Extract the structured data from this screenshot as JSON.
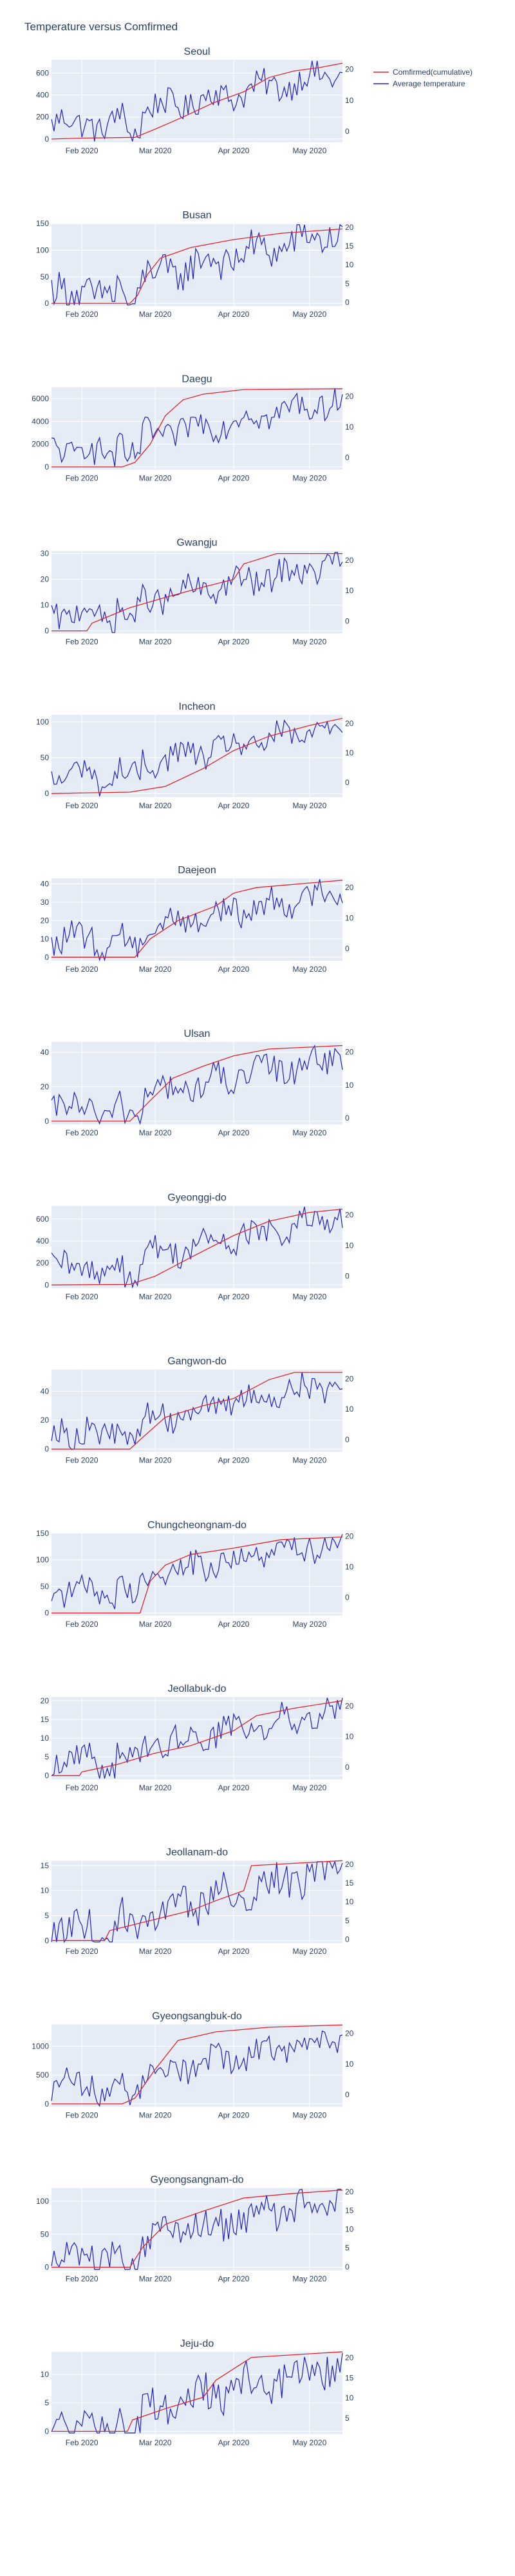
{
  "title": "Temperature versus Comfirmed",
  "legend": {
    "position": "top-right",
    "items": [
      {
        "name": "Comfirmed(cumulative)",
        "color": "#e0242a"
      },
      {
        "name": "Average temperature",
        "color": "#1f1fbf"
      }
    ]
  },
  "colors": {
    "plot_bg": "#e5ecf6",
    "grid": "#ffffff",
    "text": "#2a3f5f"
  },
  "chart_data": [
    {
      "type": "line",
      "title": "Seoul",
      "x_range": [
        "2020-01-20",
        "2020-05-14"
      ],
      "x_ticks": [
        "Feb 2020",
        "Mar 2020",
        "Apr 2020",
        "May 2020"
      ],
      "y_left": {
        "range": [
          -30,
          720
        ],
        "ticks": [
          0,
          200,
          400,
          600
        ]
      },
      "y_right": {
        "range": [
          -3.5,
          23
        ],
        "ticks": [
          0,
          10,
          20
        ]
      },
      "confirmed": {
        "start": 0,
        "end": 690,
        "points": [
          [
            "2020-01-20",
            0
          ],
          [
            "2020-02-01",
            8
          ],
          [
            "2020-02-22",
            15
          ],
          [
            "2020-03-01",
            90
          ],
          [
            "2020-03-12",
            200
          ],
          [
            "2020-03-24",
            330
          ],
          [
            "2020-04-05",
            430
          ],
          [
            "2020-04-15",
            560
          ],
          [
            "2020-04-25",
            620
          ],
          [
            "2020-05-05",
            650
          ],
          [
            "2020-05-14",
            690
          ]
        ]
      }
    },
    {
      "type": "line",
      "title": "Busan",
      "x_range": [
        "2020-01-20",
        "2020-05-14"
      ],
      "x_ticks": [
        "Feb 2020",
        "Mar 2020",
        "Apr 2020",
        "May 2020"
      ],
      "y_left": {
        "range": [
          -5,
          150
        ],
        "ticks": [
          0,
          50,
          100,
          150
        ]
      },
      "y_right": {
        "range": [
          -1,
          21
        ],
        "ticks": [
          0,
          5,
          10,
          15,
          20
        ]
      },
      "confirmed": {
        "start": 0,
        "end": 140,
        "points": [
          [
            "2020-01-20",
            0
          ],
          [
            "2020-02-20",
            0
          ],
          [
            "2020-02-23",
            15
          ],
          [
            "2020-02-27",
            55
          ],
          [
            "2020-03-03",
            85
          ],
          [
            "2020-03-15",
            105
          ],
          [
            "2020-04-01",
            120
          ],
          [
            "2020-04-20",
            132
          ],
          [
            "2020-05-14",
            140
          ]
        ]
      }
    },
    {
      "type": "line",
      "title": "Daegu",
      "x_range": [
        "2020-01-20",
        "2020-05-14"
      ],
      "x_ticks": [
        "Feb 2020",
        "Mar 2020",
        "Apr 2020",
        "May 2020"
      ],
      "y_left": {
        "range": [
          -250,
          7000
        ],
        "ticks": [
          0,
          2000,
          4000,
          6000
        ]
      },
      "y_right": {
        "range": [
          -4,
          23
        ],
        "ticks": [
          0,
          10,
          20
        ]
      },
      "confirmed": {
        "start": 0,
        "end": 6870,
        "points": [
          [
            "2020-01-20",
            0
          ],
          [
            "2020-02-17",
            0
          ],
          [
            "2020-02-22",
            400
          ],
          [
            "2020-02-28",
            2000
          ],
          [
            "2020-03-05",
            4500
          ],
          [
            "2020-03-12",
            5900
          ],
          [
            "2020-03-20",
            6400
          ],
          [
            "2020-04-05",
            6800
          ],
          [
            "2020-05-14",
            6870
          ]
        ]
      }
    },
    {
      "type": "line",
      "title": "Gwangju",
      "x_range": [
        "2020-01-20",
        "2020-05-14"
      ],
      "x_ticks": [
        "Feb 2020",
        "Mar 2020",
        "Apr 2020",
        "May 2020"
      ],
      "y_left": {
        "range": [
          -1,
          31
        ],
        "ticks": [
          0,
          10,
          20,
          30
        ]
      },
      "y_right": {
        "range": [
          -4,
          23
        ],
        "ticks": [
          0,
          10,
          20
        ]
      },
      "confirmed": {
        "start": 0,
        "end": 30,
        "points": [
          [
            "2020-01-20",
            0
          ],
          [
            "2020-02-03",
            0
          ],
          [
            "2020-02-05",
            3
          ],
          [
            "2020-02-20",
            9
          ],
          [
            "2020-03-05",
            13
          ],
          [
            "2020-03-20",
            17
          ],
          [
            "2020-04-01",
            20
          ],
          [
            "2020-04-05",
            26
          ],
          [
            "2020-04-18",
            30
          ],
          [
            "2020-05-14",
            30
          ]
        ]
      }
    },
    {
      "type": "line",
      "title": "Incheon",
      "x_range": [
        "2020-01-20",
        "2020-05-14"
      ],
      "x_ticks": [
        "Feb 2020",
        "Mar 2020",
        "Apr 2020",
        "May 2020"
      ],
      "y_left": {
        "range": [
          -5,
          110
        ],
        "ticks": [
          0,
          50,
          100
        ]
      },
      "y_right": {
        "range": [
          -5,
          23
        ],
        "ticks": [
          0,
          10,
          20
        ]
      },
      "confirmed": {
        "start": 0,
        "end": 105,
        "points": [
          [
            "2020-01-20",
            0
          ],
          [
            "2020-02-20",
            2
          ],
          [
            "2020-03-05",
            10
          ],
          [
            "2020-03-20",
            35
          ],
          [
            "2020-04-01",
            60
          ],
          [
            "2020-04-15",
            80
          ],
          [
            "2020-05-01",
            95
          ],
          [
            "2020-05-14",
            105
          ]
        ]
      }
    },
    {
      "type": "line",
      "title": "Daejeon",
      "x_range": [
        "2020-01-20",
        "2020-05-14"
      ],
      "x_ticks": [
        "Feb 2020",
        "Mar 2020",
        "Apr 2020",
        "May 2020"
      ],
      "y_left": {
        "range": [
          -2,
          43
        ],
        "ticks": [
          0,
          10,
          20,
          30,
          40
        ]
      },
      "y_right": {
        "range": [
          -4,
          23
        ],
        "ticks": [
          0,
          10,
          20
        ]
      },
      "confirmed": {
        "start": 0,
        "end": 42,
        "points": [
          [
            "2020-01-20",
            0
          ],
          [
            "2020-02-22",
            0
          ],
          [
            "2020-02-28",
            10
          ],
          [
            "2020-03-10",
            20
          ],
          [
            "2020-03-25",
            28
          ],
          [
            "2020-04-01",
            35
          ],
          [
            "2020-04-10",
            38
          ],
          [
            "2020-05-14",
            42
          ]
        ]
      }
    },
    {
      "type": "line",
      "title": "Ulsan",
      "x_range": [
        "2020-01-20",
        "2020-05-14"
      ],
      "x_ticks": [
        "Feb 2020",
        "Mar 2020",
        "Apr 2020",
        "May 2020"
      ],
      "y_left": {
        "range": [
          -2,
          46
        ],
        "ticks": [
          0,
          20,
          40
        ]
      },
      "y_right": {
        "range": [
          -2,
          23
        ],
        "ticks": [
          0,
          10,
          20
        ]
      },
      "confirmed": {
        "start": 0,
        "end": 44,
        "points": [
          [
            "2020-01-20",
            0
          ],
          [
            "2020-02-20",
            0
          ],
          [
            "2020-02-28",
            12
          ],
          [
            "2020-03-08",
            25
          ],
          [
            "2020-03-20",
            32
          ],
          [
            "2020-04-01",
            38
          ],
          [
            "2020-04-15",
            42
          ],
          [
            "2020-05-14",
            44
          ]
        ]
      }
    },
    {
      "type": "line",
      "title": "Gyeonggi-do",
      "x_range": [
        "2020-01-20",
        "2020-05-14"
      ],
      "x_ticks": [
        "Feb 2020",
        "Mar 2020",
        "Apr 2020",
        "May 2020"
      ],
      "y_left": {
        "range": [
          -30,
          720
        ],
        "ticks": [
          0,
          200,
          400,
          600
        ]
      },
      "y_right": {
        "range": [
          -4,
          23
        ],
        "ticks": [
          0,
          10,
          20
        ]
      },
      "confirmed": {
        "start": 0,
        "end": 690,
        "points": [
          [
            "2020-01-20",
            0
          ],
          [
            "2020-02-20",
            5
          ],
          [
            "2020-03-01",
            80
          ],
          [
            "2020-03-15",
            250
          ],
          [
            "2020-04-01",
            450
          ],
          [
            "2020-04-15",
            580
          ],
          [
            "2020-05-01",
            660
          ],
          [
            "2020-05-14",
            690
          ]
        ]
      }
    },
    {
      "type": "line",
      "title": "Gangwon-do",
      "x_range": [
        "2020-01-20",
        "2020-05-14"
      ],
      "x_ticks": [
        "Feb 2020",
        "Mar 2020",
        "Apr 2020",
        "May 2020"
      ],
      "y_left": {
        "range": [
          -2,
          55
        ],
        "ticks": [
          0,
          20,
          40
        ]
      },
      "y_right": {
        "range": [
          -4,
          23
        ],
        "ticks": [
          0,
          10,
          20
        ]
      },
      "confirmed": {
        "start": 0,
        "end": 53,
        "points": [
          [
            "2020-01-20",
            0
          ],
          [
            "2020-02-20",
            0
          ],
          [
            "2020-02-25",
            8
          ],
          [
            "2020-03-05",
            22
          ],
          [
            "2020-03-20",
            30
          ],
          [
            "2020-04-01",
            35
          ],
          [
            "2020-04-15",
            48
          ],
          [
            "2020-04-25",
            53
          ],
          [
            "2020-05-14",
            53
          ]
        ]
      }
    },
    {
      "type": "line",
      "title": "Chungcheongnam-do",
      "x_range": [
        "2020-01-20",
        "2020-05-14"
      ],
      "x_ticks": [
        "Feb 2020",
        "Mar 2020",
        "Apr 2020",
        "May 2020"
      ],
      "y_left": {
        "range": [
          -5,
          150
        ],
        "ticks": [
          0,
          50,
          100,
          150
        ]
      },
      "y_right": {
        "range": [
          -6,
          21
        ],
        "ticks": [
          0,
          10,
          20
        ]
      },
      "confirmed": {
        "start": 0,
        "end": 143,
        "points": [
          [
            "2020-01-20",
            0
          ],
          [
            "2020-02-24",
            0
          ],
          [
            "2020-02-28",
            60
          ],
          [
            "2020-03-05",
            90
          ],
          [
            "2020-03-15",
            110
          ],
          [
            "2020-04-01",
            122
          ],
          [
            "2020-04-20",
            138
          ],
          [
            "2020-05-14",
            143
          ]
        ]
      }
    },
    {
      "type": "line",
      "title": "Jeollabuk-do",
      "x_range": [
        "2020-01-20",
        "2020-05-14"
      ],
      "x_ticks": [
        "Feb 2020",
        "Mar 2020",
        "Apr 2020",
        "May 2020"
      ],
      "y_left": {
        "range": [
          -1,
          21
        ],
        "ticks": [
          0,
          5,
          10,
          15,
          20
        ]
      },
      "y_right": {
        "range": [
          -4,
          23
        ],
        "ticks": [
          0,
          10,
          20
        ]
      },
      "confirmed": {
        "start": 0,
        "end": 20,
        "points": [
          [
            "2020-01-20",
            0
          ],
          [
            "2020-01-31",
            0
          ],
          [
            "2020-02-01",
            1
          ],
          [
            "2020-02-15",
            3
          ],
          [
            "2020-03-01",
            6
          ],
          [
            "2020-03-15",
            8
          ],
          [
            "2020-04-01",
            12
          ],
          [
            "2020-04-10",
            16
          ],
          [
            "2020-04-25",
            18
          ],
          [
            "2020-05-14",
            20
          ]
        ]
      }
    },
    {
      "type": "line",
      "title": "Jeollanam-do",
      "x_range": [
        "2020-01-20",
        "2020-05-14"
      ],
      "x_ticks": [
        "Feb 2020",
        "Mar 2020",
        "Apr 2020",
        "May 2020"
      ],
      "y_left": {
        "range": [
          -0.5,
          16
        ],
        "ticks": [
          0,
          5,
          10,
          15
        ]
      },
      "y_right": {
        "range": [
          -1,
          21
        ],
        "ticks": [
          0,
          5,
          10,
          15,
          20
        ]
      },
      "confirmed": {
        "start": 0,
        "end": 16,
        "points": [
          [
            "2020-01-20",
            0
          ],
          [
            "2020-02-10",
            0
          ],
          [
            "2020-02-12",
            2
          ],
          [
            "2020-02-28",
            4
          ],
          [
            "2020-03-15",
            6
          ],
          [
            "2020-03-25",
            8
          ],
          [
            "2020-04-05",
            10
          ],
          [
            "2020-04-08",
            15
          ],
          [
            "2020-05-14",
            16
          ]
        ]
      }
    },
    {
      "type": "line",
      "title": "Gyeongsangbuk-do",
      "x_range": [
        "2020-01-20",
        "2020-05-14"
      ],
      "x_ticks": [
        "Feb 2020",
        "Mar 2020",
        "Apr 2020",
        "May 2020"
      ],
      "y_left": {
        "range": [
          -50,
          1380
        ],
        "ticks": [
          0,
          500,
          1000
        ]
      },
      "y_right": {
        "range": [
          -4,
          23
        ],
        "ticks": [
          0,
          10,
          20
        ]
      },
      "confirmed": {
        "start": 0,
        "end": 1370,
        "points": [
          [
            "2020-01-20",
            0
          ],
          [
            "2020-02-17",
            0
          ],
          [
            "2020-02-22",
            100
          ],
          [
            "2020-03-01",
            600
          ],
          [
            "2020-03-10",
            1100
          ],
          [
            "2020-03-25",
            1250
          ],
          [
            "2020-04-15",
            1330
          ],
          [
            "2020-05-14",
            1370
          ]
        ]
      }
    },
    {
      "type": "line",
      "title": "Gyeongsangnam-do",
      "x_range": [
        "2020-01-20",
        "2020-05-14"
      ],
      "x_ticks": [
        "Feb 2020",
        "Mar 2020",
        "Apr 2020",
        "May 2020"
      ],
      "y_left": {
        "range": [
          -5,
          120
        ],
        "ticks": [
          0,
          50,
          100
        ]
      },
      "y_right": {
        "range": [
          -1,
          21
        ],
        "ticks": [
          0,
          5,
          10,
          15,
          20
        ]
      },
      "confirmed": {
        "start": 0,
        "end": 117,
        "points": [
          [
            "2020-01-20",
            0
          ],
          [
            "2020-02-20",
            0
          ],
          [
            "2020-02-25",
            30
          ],
          [
            "2020-03-05",
            65
          ],
          [
            "2020-03-20",
            85
          ],
          [
            "2020-04-05",
            105
          ],
          [
            "2020-04-25",
            112
          ],
          [
            "2020-05-14",
            117
          ]
        ]
      }
    },
    {
      "type": "line",
      "title": "Jeju-do",
      "x_range": [
        "2020-01-20",
        "2020-05-14"
      ],
      "x_ticks": [
        "Feb 2020",
        "Mar 2020",
        "Apr 2020",
        "May 2020"
      ],
      "y_left": {
        "range": [
          -0.5,
          14
        ],
        "ticks": [
          0,
          5,
          10
        ]
      },
      "y_right": {
        "range": [
          1,
          21.5
        ],
        "ticks": [
          5,
          10,
          15,
          20
        ]
      },
      "confirmed": {
        "start": 0,
        "end": 14,
        "points": [
          [
            "2020-01-20",
            0
          ],
          [
            "2020-02-19",
            0
          ],
          [
            "2020-02-21",
            2
          ],
          [
            "2020-03-05",
            4
          ],
          [
            "2020-03-20",
            6
          ],
          [
            "2020-03-25",
            9
          ],
          [
            "2020-04-08",
            13
          ],
          [
            "2020-05-14",
            14
          ]
        ]
      }
    }
  ]
}
